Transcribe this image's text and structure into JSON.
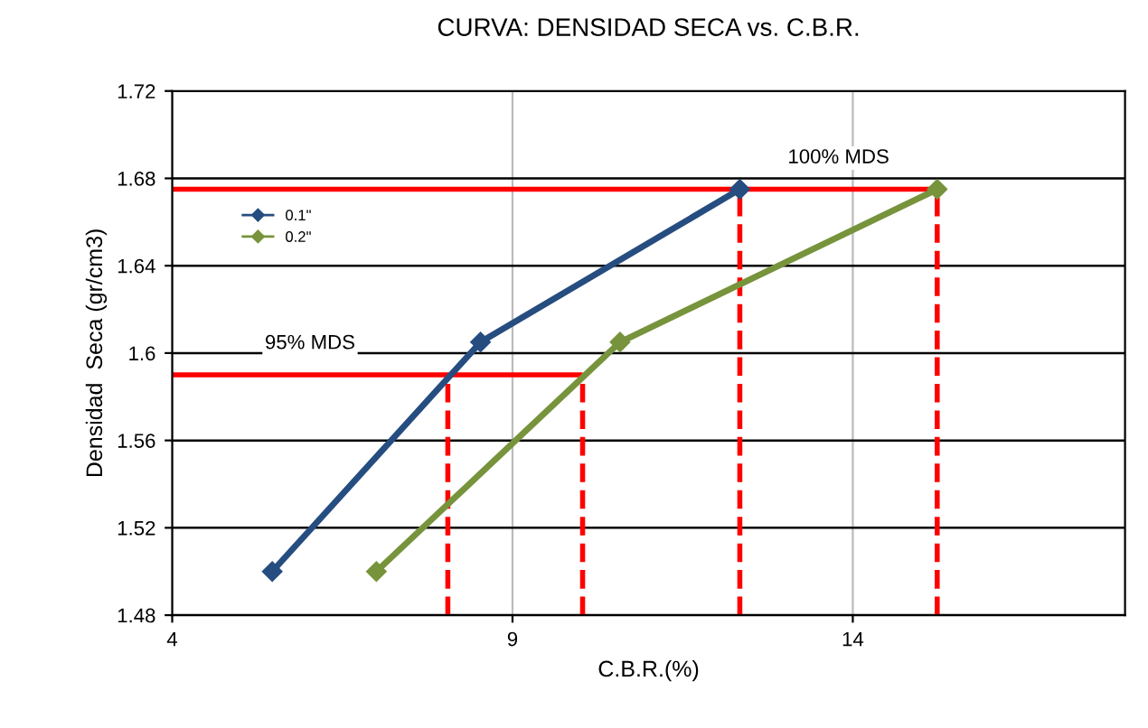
{
  "chart_data": {
    "type": "line",
    "title": "CURVA: DENSIDAD SECA vs. C.B.R.",
    "xlabel": "C.B.R.(%)",
    "ylabel": "Densidad  Seca (gr/cm3)",
    "series": [
      {
        "name": "0.1\"",
        "color": "#264d80",
        "x": [
          5.47,
          8.53,
          12.34
        ],
        "values": [
          1.5,
          1.605,
          1.675
        ]
      },
      {
        "name": "0.2\"",
        "color": "#77933c",
        "x": [
          7.0,
          10.58,
          15.24
        ],
        "values": [
          1.5,
          1.605,
          1.675
        ]
      }
    ],
    "xlim": [
      4,
      18
    ],
    "xticks": [
      4,
      9,
      14
    ],
    "ylim": [
      1.48,
      1.72
    ],
    "yticks": [
      1.48,
      1.52,
      1.56,
      1.6,
      1.64,
      1.68,
      1.72
    ],
    "ref_lines": [
      {
        "axis": "y",
        "value": 1.675,
        "label": "100% MDS",
        "color": "#ff0000",
        "line_style": "solid"
      },
      {
        "axis": "y",
        "value": 1.59,
        "label": "95% MDS",
        "color": "#ff0000",
        "line_style": "solid"
      },
      {
        "axis": "x",
        "value": 8.05,
        "color": "#ff0000",
        "line_style": "dashed"
      },
      {
        "axis": "x",
        "value": 10.03,
        "color": "#ff0000",
        "line_style": "dashed"
      },
      {
        "axis": "x",
        "value": 12.34,
        "color": "#ff0000",
        "line_style": "dashed"
      },
      {
        "axis": "x",
        "value": 15.24,
        "color": "#ff0000",
        "line_style": "dashed"
      }
    ],
    "grid": true,
    "legend": "top left",
    "marker": "diamond",
    "line_style": "solid"
  }
}
